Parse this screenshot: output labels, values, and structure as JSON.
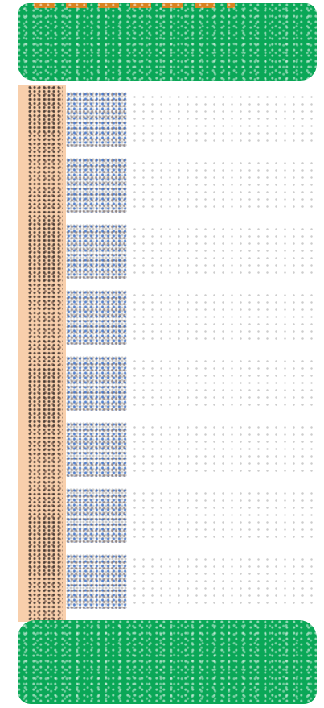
{
  "colors": {
    "header_green": "#0aa757",
    "accent_orange": "#f07f1a",
    "sidebar_peach": "#f8cfac",
    "detail_blue": "#2864c8"
  },
  "list": {
    "items": [
      {
        "label": ""
      },
      {
        "label": ""
      },
      {
        "label": ""
      },
      {
        "label": ""
      },
      {
        "label": ""
      },
      {
        "label": ""
      },
      {
        "label": ""
      },
      {
        "label": ""
      }
    ]
  }
}
